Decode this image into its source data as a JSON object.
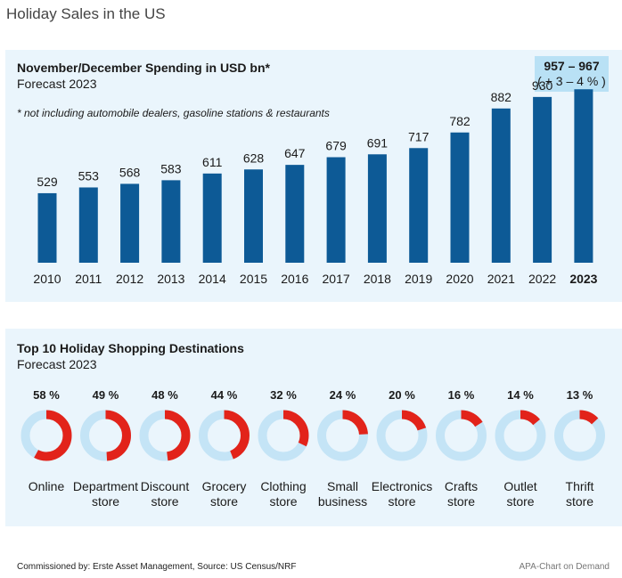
{
  "page_title": "Holiday Sales in the US",
  "colors": {
    "bar": "#0d5a96",
    "donut_fill": "#e2231a",
    "donut_track": "#c4e4f6",
    "panel": "#eaf5fc"
  },
  "chart_data": [
    {
      "type": "bar",
      "title": "November/December Spending in USD bn*",
      "subtitle": "Forecast 2023",
      "note": "* not including automobile dealers, gasoline stations & restaurants",
      "categories": [
        "2010",
        "2011",
        "2012",
        "2013",
        "2014",
        "2015",
        "2016",
        "2017",
        "2018",
        "2019",
        "2020",
        "2021",
        "2022",
        "2023"
      ],
      "values": [
        529,
        553,
        568,
        583,
        611,
        628,
        647,
        679,
        691,
        717,
        782,
        882,
        930,
        962
      ],
      "labels": [
        "529",
        "553",
        "568",
        "583",
        "611",
        "628",
        "647",
        "679",
        "691",
        "717",
        "782",
        "882",
        "930",
        ""
      ],
      "highlight_category": "2023",
      "callout": {
        "value": "957 – 967",
        "change": "( + 3 – 4 % )"
      },
      "ylim": [
        0,
        1000
      ],
      "grid": false
    },
    {
      "type": "pie",
      "title": "Top 10 Holiday Shopping Destinations",
      "subtitle": "Forecast 2023",
      "items": [
        {
          "label_line1": "Online",
          "label_line2": "",
          "value": 58,
          "value_label": "58 %"
        },
        {
          "label_line1": "Department",
          "label_line2": "store",
          "value": 49,
          "value_label": "49 %"
        },
        {
          "label_line1": "Discount",
          "label_line2": "store",
          "value": 48,
          "value_label": "48 %"
        },
        {
          "label_line1": "Grocery",
          "label_line2": "store",
          "value": 44,
          "value_label": "44 %"
        },
        {
          "label_line1": "Clothing",
          "label_line2": "store",
          "value": 32,
          "value_label": "32 %"
        },
        {
          "label_line1": "Small",
          "label_line2": "business",
          "value": 24,
          "value_label": "24 %"
        },
        {
          "label_line1": "Electronics",
          "label_line2": "store",
          "value": 20,
          "value_label": "20 %"
        },
        {
          "label_line1": "Crafts",
          "label_line2": "store",
          "value": 16,
          "value_label": "16 %"
        },
        {
          "label_line1": "Outlet",
          "label_line2": "store",
          "value": 14,
          "value_label": "14 %"
        },
        {
          "label_line1": "Thrift",
          "label_line2": "store",
          "value": 13,
          "value_label": "13 %"
        }
      ]
    }
  ],
  "footer": {
    "source": "Commissioned by: Erste Asset Management, Source: US Census/NRF",
    "credit": "APA-Chart on Demand"
  }
}
